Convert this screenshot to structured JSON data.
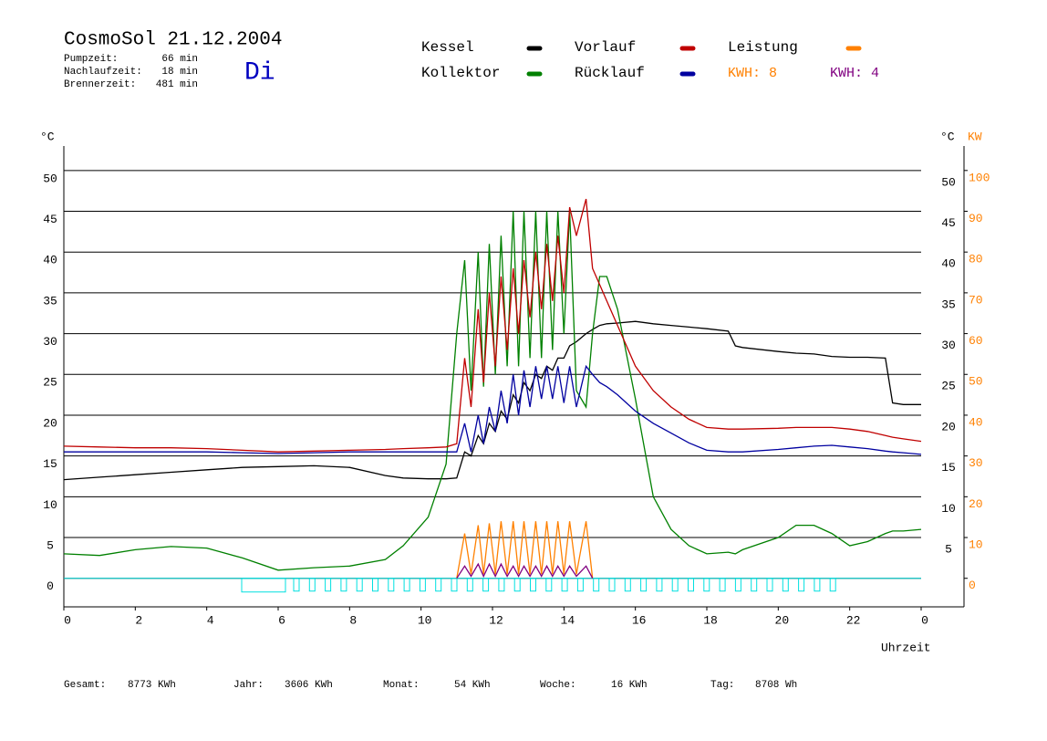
{
  "chart_data": {
    "type": "line",
    "title": "CosmoSol 21.12.2004",
    "info": [
      {
        "label": "Pumpzeit:",
        "value": "66 min"
      },
      {
        "label": "Nachlaufzeit:",
        "value": "18 min"
      },
      {
        "label": "Brennerzeit:",
        "value": "481 min"
      }
    ],
    "weekday": "Di",
    "y_label": "°C",
    "y2_label": "KW",
    "x_label": "Uhrzeit",
    "annotations": [
      {
        "text": "KWH: 8",
        "color": "#ff8000"
      },
      {
        "text": "KWH: 4",
        "color": "#800080"
      }
    ],
    "footer": [
      {
        "label": "Gesamt:",
        "value": "8773 KWh"
      },
      {
        "label": "Jahr:",
        "value": "3606 KWh"
      },
      {
        "label": "Monat:",
        "value": "54 KWh"
      },
      {
        "label": "Woche:",
        "value": "16 KWh"
      },
      {
        "label": "Tag:",
        "value": "8708 Wh"
      }
    ],
    "x": [
      0,
      1,
      2,
      3,
      4,
      5,
      6,
      7,
      8,
      9,
      9.5,
      10.2,
      10.7,
      11,
      11.22,
      11.4,
      11.6,
      11.75,
      11.91,
      12.08,
      12.24,
      12.41,
      12.58,
      12.73,
      12.88,
      13.05,
      13.21,
      13.37,
      13.52,
      13.68,
      13.83,
      14,
      14.16,
      14.35,
      14.62,
      14.8,
      15,
      15.2,
      15.5,
      16,
      16.5,
      17,
      17.5,
      18,
      18.6,
      18.8,
      19,
      20,
      20.5,
      21,
      21.5,
      22,
      22.5,
      23,
      23.2,
      23.5,
      24
    ],
    "xlim": [
      0,
      25.2
    ],
    "xticks": [
      0,
      2,
      4,
      6,
      8,
      10,
      12,
      14,
      16,
      18,
      20,
      22,
      {
        "value": 24,
        "label": "0"
      }
    ],
    "ylim": [
      -3.5,
      53
    ],
    "yticks": [
      0,
      5,
      10,
      15,
      20,
      25,
      30,
      35,
      40,
      45,
      50
    ],
    "y2lim": [
      -7,
      106
    ],
    "y2ticks": [
      0,
      10,
      20,
      30,
      40,
      50,
      60,
      70,
      80,
      90,
      100
    ],
    "grid": true,
    "series": [
      {
        "name": "Kessel",
        "color": "#000000",
        "values": [
          12.1,
          12.4,
          12.7,
          13,
          13.3,
          13.6,
          13.7,
          13.8,
          13.6,
          12.6,
          12.3,
          12.2,
          12.2,
          12.3,
          15.5,
          15,
          17.5,
          16.5,
          19,
          18,
          20.5,
          19.5,
          22.5,
          21.5,
          24,
          23,
          25,
          24.5,
          26,
          25.5,
          27,
          27,
          28.5,
          29,
          30,
          30.5,
          31,
          31.2,
          31.3,
          31.5,
          31.2,
          31,
          30.8,
          30.6,
          30.3,
          28.5,
          28.3,
          27.8,
          27.6,
          27.5,
          27.2,
          27.1,
          27.1,
          27,
          21.5,
          21.3,
          21.3
        ]
      },
      {
        "name": "Kollektor",
        "color": "#008000",
        "values": [
          3,
          2.8,
          3.5,
          3.9,
          3.7,
          2.5,
          1,
          1.3,
          1.5,
          2.3,
          4,
          7.5,
          14,
          30,
          39,
          23,
          40,
          23.5,
          41,
          25,
          42,
          26,
          45,
          26,
          45,
          27,
          45,
          27,
          45,
          28,
          45,
          30,
          45,
          23,
          21,
          30,
          37,
          37,
          33,
          22,
          10,
          6,
          4,
          3,
          3.2,
          3,
          3.5,
          5,
          6.5,
          6.5,
          5.5,
          4,
          4.5,
          5.5,
          5.8,
          5.8,
          6
        ]
      },
      {
        "name": "Vorlauf",
        "color": "#c00000",
        "values": [
          16.2,
          16.1,
          16,
          16,
          15.9,
          15.7,
          15.5,
          15.6,
          15.7,
          15.8,
          15.9,
          16,
          16.1,
          16.5,
          27,
          21,
          33,
          24,
          35,
          26,
          37,
          28,
          38,
          30,
          39,
          32,
          40,
          33,
          41,
          34,
          42,
          35,
          45.5,
          42,
          46.5,
          38,
          36,
          34,
          31,
          26,
          23,
          21,
          19.5,
          18.5,
          18.3,
          18.3,
          18.3,
          18.4,
          18.5,
          18.5,
          18.5,
          18.3,
          18,
          17.5,
          17.3,
          17.1,
          16.8
        ]
      },
      {
        "name": "Rücklauf",
        "color": "#0000a0",
        "values": [
          15.5,
          15.5,
          15.5,
          15.5,
          15.5,
          15.4,
          15.3,
          15.4,
          15.5,
          15.5,
          15.5,
          15.5,
          15.5,
          15.5,
          19,
          15.5,
          20,
          16.5,
          21,
          18,
          23,
          19,
          25,
          20,
          25.5,
          21,
          26,
          22,
          26,
          22,
          26,
          21.5,
          26,
          21,
          26,
          25,
          24,
          23.5,
          22.5,
          20.5,
          19,
          17.8,
          16.6,
          15.7,
          15.5,
          15.5,
          15.5,
          15.8,
          16,
          16.2,
          16.3,
          16.1,
          15.9,
          15.6,
          15.5,
          15.4,
          15.2
        ]
      },
      {
        "name": "Leistung",
        "color": "#ff8000",
        "axis": "y2",
        "values": [
          null,
          null,
          null,
          null,
          null,
          null,
          null,
          null,
          null,
          null,
          null,
          null,
          null,
          0,
          11,
          1,
          13,
          1,
          13.5,
          1,
          14,
          1,
          14,
          1,
          14,
          1,
          14,
          1,
          14,
          1,
          14,
          1,
          14,
          1,
          14,
          0,
          null,
          null,
          null,
          null,
          null,
          null,
          null,
          null,
          null,
          null,
          null,
          null,
          null,
          null,
          null,
          null,
          null,
          null,
          null,
          null,
          null
        ]
      },
      {
        "color": "#800080",
        "axis": "y2",
        "values": [
          null,
          null,
          null,
          null,
          null,
          null,
          null,
          null,
          null,
          null,
          null,
          null,
          null,
          0,
          3,
          0.5,
          3.5,
          0.5,
          3.5,
          0.5,
          3.5,
          0.5,
          3,
          0.5,
          3,
          0.5,
          3,
          0.5,
          3,
          0.5,
          3,
          0.5,
          3,
          0.5,
          3,
          0,
          null,
          null,
          null,
          null,
          null,
          null,
          null,
          null,
          null,
          null,
          null,
          null,
          null,
          null,
          null,
          null,
          null,
          null,
          null,
          null,
          null
        ]
      }
    ]
  }
}
